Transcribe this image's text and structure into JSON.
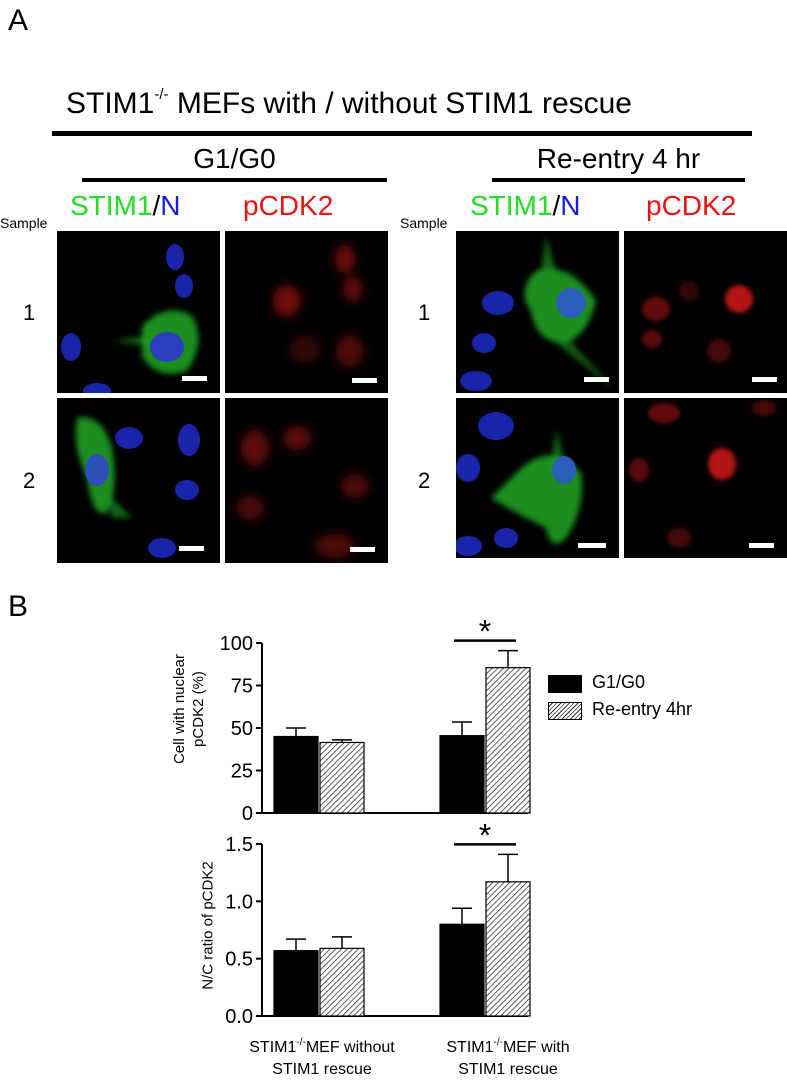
{
  "panel_a": {
    "letter": "A",
    "title_before_sup": "STIM1",
    "title_sup": "-/-",
    "title_after_sup": " MEFs with / without STIM1 rescue",
    "groups": [
      {
        "title": "G1/G0",
        "col_label_stim": "STIM1",
        "col_label_sep": "/",
        "col_label_n": "N",
        "col_label_pcdk": "pCDK2",
        "sample_heading": "Sample",
        "rows": [
          "1",
          "2"
        ]
      },
      {
        "title": "Re-entry 4 hr",
        "col_label_stim": "STIM1",
        "col_label_sep": "/",
        "col_label_n": "N",
        "col_label_pcdk": "pCDK2",
        "sample_heading": "Sample",
        "rows": [
          "1",
          "2"
        ]
      }
    ],
    "colors": {
      "green": "#22dd22",
      "blue": "#1a1adf",
      "red": "#ee1111"
    }
  },
  "panel_b": {
    "letter": "B",
    "legend": [
      {
        "label": "G1/G0",
        "style": "solid"
      },
      {
        "label": "Re-entry 4hr",
        "style": "hatched"
      }
    ],
    "group_labels": [
      {
        "pre": "STIM1",
        "sup": "-/-",
        "post": "MEF without",
        "line2": "STIM1 rescue"
      },
      {
        "pre": "STIM1",
        "sup": "-/-",
        "post": "MEF with",
        "line2": "STIM1 rescue"
      }
    ]
  },
  "chart_data": [
    {
      "type": "bar",
      "ylabel_line1": "Cell with nuclear",
      "ylabel_line2": "pCDK2 (%)",
      "ylim": [
        0,
        100
      ],
      "yticks": [
        "0",
        "25",
        "50",
        "75",
        "100"
      ],
      "series": [
        {
          "name": "G1/G0",
          "values": [
            45,
            45.5
          ],
          "errors": [
            5,
            8
          ]
        },
        {
          "name": "Re-entry 4hr",
          "values": [
            41.5,
            85.5
          ],
          "errors": [
            1.5,
            10
          ]
        }
      ],
      "annotation": {
        "text": "*",
        "group_index": 1
      }
    },
    {
      "type": "bar",
      "ylabel_line1": "N/C ratio of pCDK2",
      "ylim": [
        0,
        1.5
      ],
      "yticks": [
        "0.0",
        "0.5",
        "1.0",
        "1.5"
      ],
      "series": [
        {
          "name": "G1/G0",
          "values": [
            0.57,
            0.8
          ],
          "errors": [
            0.1,
            0.14
          ]
        },
        {
          "name": "Re-entry 4hr",
          "values": [
            0.59,
            1.17
          ],
          "errors": [
            0.1,
            0.24
          ]
        }
      ],
      "annotation": {
        "text": "*",
        "group_index": 1
      }
    }
  ]
}
